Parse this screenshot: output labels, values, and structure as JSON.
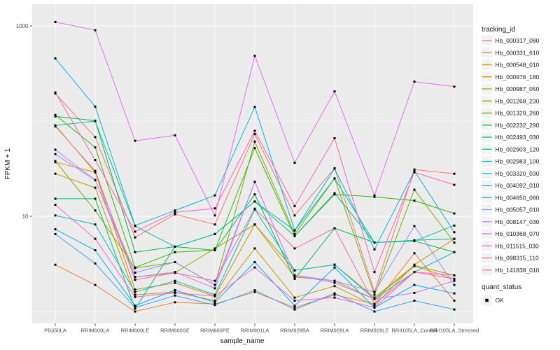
{
  "style": {
    "background": "#FFFFFF",
    "panel_bg": "#EBEBEB",
    "grid_color": "#FFFFFF",
    "tick_color": "#333333",
    "tick_label_color": "#4D4D4D",
    "axis_title_color": "#111111",
    "legend_text_color": "#1A1A1A",
    "legend_key_bg": "#F2F2F2",
    "point_color": "#000000"
  },
  "chart_data": {
    "type": "line",
    "title": "",
    "xlabel": "sample_name",
    "ylabel": "FPKM + 1",
    "y_scale": "log10",
    "ylim": [
      0.9,
      1550
    ],
    "grid": true,
    "legend_position": "right",
    "legend_title": "tracking_id",
    "quant_status_legend": {
      "title": "quant_status",
      "items": [
        "OK"
      ]
    },
    "marker": "black-square",
    "y_major_ticks": [
      {
        "value": 1000,
        "label": "1000"
      },
      {
        "value": 10,
        "label": "10"
      }
    ],
    "y_unlabeled_gridlines": [
      100,
      1
    ],
    "categories": [
      "PB350LA",
      "RRIM600LA",
      "RRIM600LE",
      "RRIM600SE",
      "RRIM600PE",
      "RRIM901LA",
      "RRIM928BA",
      "RRIM928LA",
      "RRIM928LE",
      "RRII105LA_Control",
      "RRII105LA_Stressed"
    ],
    "series": [
      {
        "name": "Hb_000317_080",
        "color": "#F8766D",
        "values": [
          195,
          68,
          6.0,
          10.5,
          8.2,
          73,
          10.2,
          32,
          1.6,
          31,
          28
        ]
      },
      {
        "name": "Hb_000331_610",
        "color": "#EA8331",
        "values": [
          3.1,
          1.9,
          1.0,
          1.25,
          1.2,
          1.6,
          1.1,
          1.5,
          1.2,
          4.1,
          1.3
        ]
      },
      {
        "name": "Hb_000548_010",
        "color": "#D89000",
        "values": [
          37,
          29,
          1.7,
          2.0,
          1.45,
          8.2,
          2.3,
          2.1,
          1.35,
          3.0,
          2.2
        ]
      },
      {
        "name": "Hb_000976_180",
        "color": "#C09B00",
        "values": [
          28,
          20,
          1.5,
          1.6,
          1.3,
          4.6,
          1.4,
          1.85,
          1.15,
          3.1,
          5.8
        ]
      },
      {
        "name": "Hb_000987_050",
        "color": "#A3A500",
        "values": [
          90,
          29,
          2.3,
          2.55,
          4.6,
          8.2,
          2.7,
          3.1,
          1.4,
          3.05,
          2.4
        ]
      },
      {
        "name": "Hb_001268_230",
        "color": "#7CAE00",
        "values": [
          38,
          11.5,
          2.85,
          3.3,
          1.9,
          61,
          6.5,
          25,
          1.5,
          19,
          5.3
        ]
      },
      {
        "name": "Hb_001329_260",
        "color": "#39B600",
        "values": [
          116,
          53,
          2.9,
          4.2,
          4.4,
          52,
          6.2,
          17,
          16,
          14.6,
          10.7
        ]
      },
      {
        "name": "Hb_002232_290",
        "color": "#00BB4E",
        "values": [
          112,
          101,
          4.2,
          4.8,
          4.4,
          17,
          2.2,
          7.5,
          5.3,
          5.5,
          4.2
        ]
      },
      {
        "name": "Hb_002493_030",
        "color": "#00BF7D",
        "values": [
          15.3,
          15.3,
          1.07,
          4.8,
          6.5,
          14.3,
          6.2,
          17.5,
          5.3,
          5.6,
          5.8
        ]
      },
      {
        "name": "Hb_002903_120",
        "color": "#00C1A3",
        "values": [
          90,
          100,
          7.9,
          4.8,
          6.5,
          14.3,
          7.1,
          25,
          5.3,
          5.5,
          8.0
        ]
      },
      {
        "name": "Hb_002983_100",
        "color": "#00BFC4",
        "values": [
          10.2,
          8.2,
          1.6,
          2.1,
          1.5,
          11.8,
          2.7,
          3.1,
          1.35,
          2.6,
          4.2
        ]
      },
      {
        "name": "Hb_003320_030",
        "color": "#00BAE0",
        "values": [
          456,
          142,
          8.0,
          11.5,
          16.6,
          141,
          7.1,
          31.6,
          4.5,
          30,
          6.8
        ]
      },
      {
        "name": "Hb_004092_010",
        "color": "#00B0F6",
        "values": [
          7.3,
          4.4,
          1.15,
          1.68,
          1.25,
          3.3,
          1.15,
          2.9,
          1.1,
          1.9,
          1.55
        ]
      },
      {
        "name": "Hb_004650_080",
        "color": "#35A2FF",
        "values": [
          6.5,
          3.2,
          1.1,
          1.47,
          1.17,
          1.67,
          1.05,
          1.55,
          1.0,
          1.3,
          1.05
        ]
      },
      {
        "name": "Hb_005057_010",
        "color": "#9590FF",
        "values": [
          50,
          24,
          2.56,
          3.3,
          1.9,
          23,
          2.4,
          2.1,
          1.6,
          7.9,
          1.9
        ]
      },
      {
        "name": "Hb_008147_030",
        "color": "#C77CFF",
        "values": [
          45,
          24,
          2.3,
          2.6,
          1.75,
          23,
          2.4,
          2.0,
          1.35,
          1.57,
          2.1
        ]
      },
      {
        "name": "Hb_010368_070",
        "color": "#E76BF3",
        "values": [
          1100,
          900,
          62,
          71,
          10.2,
          485,
          36.5,
          205,
          16.6,
          260,
          230
        ]
      },
      {
        "name": "Hb_011515_030",
        "color": "#FA62DB",
        "values": [
          13.2,
          5.8,
          1.42,
          1.57,
          1.45,
          2.9,
          1.3,
          1.4,
          1.1,
          2.6,
          2.4
        ]
      },
      {
        "name": "Hb_098315_110",
        "color": "#FF62BC",
        "values": [
          200,
          39,
          6.9,
          11,
          12.1,
          79,
          12.8,
          66,
          2.6,
          29,
          21.4
        ]
      },
      {
        "name": "Hb_141838_010",
        "color": "#FF6A98",
        "values": [
          88,
          30,
          2.15,
          2.55,
          2.1,
          12,
          4.6,
          7.5,
          1.2,
          2.6,
          2.2
        ]
      }
    ]
  }
}
